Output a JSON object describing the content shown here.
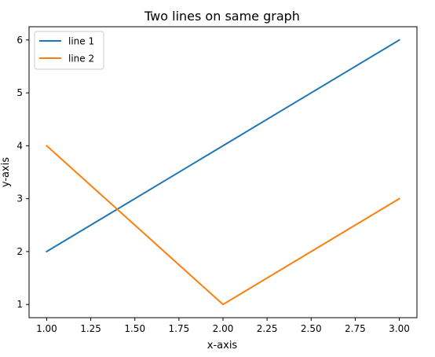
{
  "chart_data": {
    "type": "line",
    "title": "Two lines on same graph",
    "xlabel": "x-axis",
    "ylabel": "y-axis",
    "xlim": [
      0.9,
      3.1
    ],
    "ylim": [
      0.75,
      6.25
    ],
    "xticks": [
      1.0,
      1.25,
      1.5,
      1.75,
      2.0,
      2.25,
      2.5,
      2.75,
      3.0
    ],
    "xtick_labels": [
      "1.00",
      "1.25",
      "1.50",
      "1.75",
      "2.00",
      "2.25",
      "2.50",
      "2.75",
      "3.00"
    ],
    "yticks": [
      1,
      2,
      3,
      4,
      5,
      6
    ],
    "ytick_labels": [
      "1",
      "2",
      "3",
      "4",
      "5",
      "6"
    ],
    "grid": false,
    "legend_position": "top-left",
    "series": [
      {
        "name": "line 1",
        "color": "#1f77b4",
        "x": [
          1,
          2,
          3
        ],
        "y": [
          2,
          4,
          6
        ]
      },
      {
        "name": "line 2",
        "color": "#ff7f0e",
        "x": [
          1,
          2,
          3
        ],
        "y": [
          4,
          1,
          3
        ]
      }
    ]
  }
}
